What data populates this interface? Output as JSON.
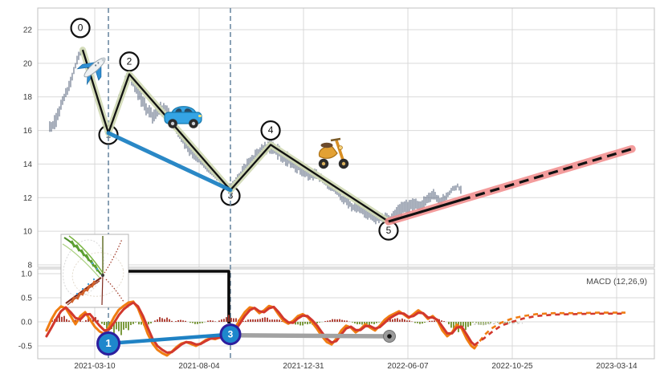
{
  "macd_label": "MACD (12,26,9)",
  "axes": {
    "main": {
      "yticks": [
        "22",
        "20",
        "18",
        "16",
        "14",
        "12",
        "10",
        "8"
      ],
      "ytick_values": [
        22,
        20,
        18,
        16,
        14,
        12,
        10,
        8
      ]
    },
    "macd": {
      "yticks": [
        "1.0",
        "0.5",
        "0.0",
        "-0.5"
      ],
      "ytick_values": [
        1.0,
        0.5,
        0.0,
        -0.5
      ]
    },
    "x": {
      "ticks": [
        "2021-03-10",
        "2021-08-04",
        "2021-12-31",
        "2022-06-07",
        "2022-10-25",
        "2023-03-14"
      ]
    }
  },
  "colors": {
    "price_bar": "#55637b",
    "wave_line": "#111111",
    "wave_glow": "#d0d9b4",
    "trend_blue": "#1f82c4",
    "forecast_line": "#111111",
    "forecast_glow": "#f28b8b",
    "macd": "#f07d12",
    "signal": "#d2382d",
    "hist_pos": "#a93226",
    "hist_neg": "#6d8f28",
    "gray_run": "#a2a2a2",
    "vline": "#6d8aa3",
    "marker_fill": "#1e87cc",
    "marker_edge": "#2d1e9e",
    "grid": "#d9d9d9",
    "spine": "#c0c0c0",
    "tick_text": "#3a3a3a"
  },
  "icons": [
    {
      "name": "airplane-icon"
    },
    {
      "name": "car-icon"
    },
    {
      "name": "scooter-icon"
    },
    {
      "name": "inset-pattern-image"
    }
  ],
  "chart_data": {
    "type": "line",
    "x_unit": "grid intervals from 2021-03-10 tick (1 interval = 1 x-gridline spacing, ~104 trading days)",
    "main_ylim": [
      7.9,
      23.3
    ],
    "macd_ylim": [
      -0.77,
      1.1
    ],
    "grid": true,
    "price_anchors": [
      [
        -0.431,
        16.1
      ],
      [
        -0.369,
        16.6
      ],
      [
        -0.308,
        17.8
      ],
      [
        -0.246,
        18.6
      ],
      [
        -0.2,
        19.6
      ],
      [
        -0.162,
        20.3
      ],
      [
        -0.115,
        20.9
      ],
      [
        -0.077,
        20.1
      ],
      [
        -0.031,
        19.2
      ],
      [
        0.015,
        18.0
      ],
      [
        0.062,
        17.0
      ],
      [
        0.1,
        16.3
      ],
      [
        0.131,
        15.9
      ],
      [
        0.169,
        16.6
      ],
      [
        0.215,
        17.6
      ],
      [
        0.262,
        18.5
      ],
      [
        0.308,
        19.1
      ],
      [
        0.338,
        19.35
      ],
      [
        0.385,
        18.6
      ],
      [
        0.431,
        18.0
      ],
      [
        0.492,
        17.3
      ],
      [
        0.554,
        16.9
      ],
      [
        0.615,
        17.2
      ],
      [
        0.677,
        17.3
      ],
      [
        0.738,
        16.6
      ],
      [
        0.8,
        15.9
      ],
      [
        0.862,
        15.3
      ],
      [
        0.923,
        14.7
      ],
      [
        0.985,
        14.3
      ],
      [
        1.046,
        14.0
      ],
      [
        1.108,
        13.6
      ],
      [
        1.169,
        13.2
      ],
      [
        1.231,
        12.8
      ],
      [
        1.3,
        12.5
      ],
      [
        1.362,
        13.0
      ],
      [
        1.423,
        13.6
      ],
      [
        1.485,
        14.1
      ],
      [
        1.546,
        14.5
      ],
      [
        1.608,
        14.9
      ],
      [
        1.685,
        15.1
      ],
      [
        1.746,
        14.8
      ],
      [
        1.808,
        14.4
      ],
      [
        1.869,
        14.2
      ],
      [
        1.931,
        13.9
      ],
      [
        1.992,
        13.6
      ],
      [
        2.054,
        13.3
      ],
      [
        2.115,
        13.4
      ],
      [
        2.177,
        13.1
      ],
      [
        2.238,
        12.7
      ],
      [
        2.3,
        12.4
      ],
      [
        2.362,
        12.0
      ],
      [
        2.423,
        11.7
      ],
      [
        2.485,
        11.4
      ],
      [
        2.546,
        11.3
      ],
      [
        2.608,
        11.1
      ],
      [
        2.669,
        10.9
      ],
      [
        2.731,
        10.8
      ],
      [
        2.815,
        10.6
      ],
      [
        2.877,
        11.0
      ],
      [
        2.938,
        11.3
      ],
      [
        3.0,
        11.5
      ],
      [
        3.062,
        11.7
      ],
      [
        3.123,
        11.4
      ],
      [
        3.185,
        12.0
      ],
      [
        3.246,
        12.2
      ],
      [
        3.308,
        11.8
      ],
      [
        3.369,
        12.1
      ],
      [
        3.431,
        12.5
      ],
      [
        3.477,
        12.7
      ],
      [
        3.515,
        12.4
      ]
    ],
    "price_noise_amp": 0.32,
    "elliott_waves": {
      "labels": [
        "0",
        "1",
        "2",
        "3",
        "4",
        "5"
      ],
      "pivots": [
        [
          -0.115,
          20.8
        ],
        [
          0.131,
          15.85
        ],
        [
          0.331,
          19.35
        ],
        [
          1.3,
          12.45
        ],
        [
          1.685,
          15.15
        ],
        [
          2.815,
          10.58
        ]
      ],
      "marker_centers": [
        [
          -0.138,
          22.1
        ],
        [
          0.131,
          15.74
        ],
        [
          0.331,
          20.1
        ],
        [
          1.3,
          12.11
        ],
        [
          1.685,
          16.0
        ],
        [
          2.815,
          10.05
        ]
      ]
    },
    "trendline_1_3": {
      "from": [
        0.131,
        15.85
      ],
      "to": [
        1.3,
        12.45
      ]
    },
    "forecast": {
      "start": [
        2.815,
        10.58
      ],
      "solid_to": [
        3.508,
        11.86
      ],
      "end": [
        5.146,
        14.9
      ]
    },
    "vlines_u": [
      0.131,
      1.3
    ],
    "macd_line": [
      [
        -0.462,
        -0.18
      ],
      [
        -0.415,
        0.05
      ],
      [
        -0.369,
        0.22
      ],
      [
        -0.323,
        0.32
      ],
      [
        -0.277,
        0.28
      ],
      [
        -0.231,
        0.12
      ],
      [
        -0.185,
        -0.05
      ],
      [
        -0.138,
        0.12
      ],
      [
        -0.092,
        0.2
      ],
      [
        -0.046,
        0.05
      ],
      [
        0,
        -0.1
      ],
      [
        0.046,
        -0.2
      ],
      [
        0.092,
        -0.25
      ],
      [
        0.138,
        -0.1
      ],
      [
        0.185,
        0.1
      ],
      [
        0.231,
        0.25
      ],
      [
        0.277,
        0.33
      ],
      [
        0.323,
        0.4
      ],
      [
        0.369,
        0.42
      ],
      [
        0.415,
        0.28
      ],
      [
        0.462,
        0.02
      ],
      [
        0.508,
        -0.25
      ],
      [
        0.554,
        -0.45
      ],
      [
        0.6,
        -0.58
      ],
      [
        0.646,
        -0.65
      ],
      [
        0.692,
        -0.7
      ],
      [
        0.738,
        -0.62
      ],
      [
        0.785,
        -0.52
      ],
      [
        0.831,
        -0.45
      ],
      [
        0.877,
        -0.42
      ],
      [
        0.923,
        -0.46
      ],
      [
        0.969,
        -0.5
      ],
      [
        1.015,
        -0.45
      ],
      [
        1.062,
        -0.38
      ],
      [
        1.108,
        -0.34
      ],
      [
        1.154,
        -0.36
      ],
      [
        1.2,
        -0.32
      ],
      [
        1.246,
        -0.3
      ],
      [
        1.3,
        -0.26
      ],
      [
        1.346,
        -0.12
      ],
      [
        1.392,
        0.05
      ],
      [
        1.438,
        0.2
      ],
      [
        1.485,
        0.3
      ],
      [
        1.531,
        0.28
      ],
      [
        1.577,
        0.18
      ],
      [
        1.623,
        0.24
      ],
      [
        1.669,
        0.33
      ],
      [
        1.715,
        0.3
      ],
      [
        1.762,
        0.15
      ],
      [
        1.808,
        0.02
      ],
      [
        1.854,
        -0.04
      ],
      [
        1.9,
        0.02
      ],
      [
        1.946,
        0.12
      ],
      [
        1.992,
        0.16
      ],
      [
        2.038,
        0.1
      ],
      [
        2.085,
        -0.02
      ],
      [
        2.131,
        -0.15
      ],
      [
        2.177,
        -0.3
      ],
      [
        2.223,
        -0.42
      ],
      [
        2.269,
        -0.47
      ],
      [
        2.315,
        -0.35
      ],
      [
        2.362,
        -0.18
      ],
      [
        2.408,
        -0.08
      ],
      [
        2.454,
        -0.12
      ],
      [
        2.5,
        -0.22
      ],
      [
        2.546,
        -0.15
      ],
      [
        2.592,
        -0.05
      ],
      [
        2.638,
        -0.12
      ],
      [
        2.685,
        -0.18
      ],
      [
        2.731,
        -0.08
      ],
      [
        2.777,
        0.04
      ],
      [
        2.823,
        0.12
      ],
      [
        2.869,
        0.17
      ],
      [
        2.915,
        0.22
      ],
      [
        2.962,
        0.15
      ],
      [
        3.008,
        0.08
      ],
      [
        3.054,
        0.16
      ],
      [
        3.1,
        0.24
      ],
      [
        3.146,
        0.17
      ],
      [
        3.192,
        0.06
      ],
      [
        3.238,
        0.12
      ],
      [
        3.285,
        0.02
      ],
      [
        3.331,
        -0.18
      ],
      [
        3.377,
        -0.3
      ],
      [
        3.423,
        -0.22
      ],
      [
        3.469,
        -0.06
      ],
      [
        3.515,
        -0.14
      ],
      [
        3.562,
        -0.35
      ],
      [
        3.608,
        -0.5
      ],
      [
        3.638,
        -0.55
      ]
    ],
    "macd_line_forecast": [
      [
        3.638,
        -0.55
      ],
      [
        3.731,
        -0.28
      ],
      [
        3.8,
        -0.14
      ],
      [
        3.892,
        -0.02
      ],
      [
        4.0,
        0.07
      ],
      [
        4.108,
        0.12
      ],
      [
        4.231,
        0.16
      ],
      [
        4.4,
        0.18
      ],
      [
        4.592,
        0.18
      ],
      [
        4.823,
        0.19
      ],
      [
        5.085,
        0.19
      ]
    ],
    "signal_line": [
      [
        -0.462,
        -0.3
      ],
      [
        -0.415,
        -0.12
      ],
      [
        -0.369,
        0.06
      ],
      [
        -0.323,
        0.22
      ],
      [
        -0.277,
        0.3
      ],
      [
        -0.231,
        0.2
      ],
      [
        -0.185,
        0.08
      ],
      [
        -0.138,
        0.05
      ],
      [
        -0.092,
        0.15
      ],
      [
        -0.046,
        0.16
      ],
      [
        0,
        0.04
      ],
      [
        0.046,
        -0.08
      ],
      [
        0.092,
        -0.18
      ],
      [
        0.138,
        -0.16
      ],
      [
        0.185,
        -0.02
      ],
      [
        0.231,
        0.14
      ],
      [
        0.277,
        0.26
      ],
      [
        0.323,
        0.34
      ],
      [
        0.369,
        0.4
      ],
      [
        0.415,
        0.32
      ],
      [
        0.462,
        0.12
      ],
      [
        0.508,
        -0.12
      ],
      [
        0.554,
        -0.35
      ],
      [
        0.6,
        -0.5
      ],
      [
        0.646,
        -0.58
      ],
      [
        0.692,
        -0.64
      ],
      [
        0.738,
        -0.63
      ],
      [
        0.785,
        -0.55
      ],
      [
        0.831,
        -0.47
      ],
      [
        0.877,
        -0.42
      ],
      [
        0.923,
        -0.43
      ],
      [
        0.969,
        -0.47
      ],
      [
        1.015,
        -0.46
      ],
      [
        1.062,
        -0.4
      ],
      [
        1.108,
        -0.35
      ],
      [
        1.154,
        -0.34
      ],
      [
        1.2,
        -0.33
      ],
      [
        1.246,
        -0.3
      ],
      [
        1.3,
        -0.28
      ],
      [
        1.346,
        -0.18
      ],
      [
        1.392,
        -0.03
      ],
      [
        1.438,
        0.12
      ],
      [
        1.485,
        0.24
      ],
      [
        1.531,
        0.29
      ],
      [
        1.577,
        0.22
      ],
      [
        1.623,
        0.2
      ],
      [
        1.669,
        0.28
      ],
      [
        1.715,
        0.31
      ],
      [
        1.762,
        0.2
      ],
      [
        1.808,
        0.07
      ],
      [
        1.854,
        -0.01
      ],
      [
        1.9,
        -0.02
      ],
      [
        1.946,
        0.07
      ],
      [
        1.992,
        0.13
      ],
      [
        2.038,
        0.12
      ],
      [
        2.085,
        0.03
      ],
      [
        2.131,
        -0.08
      ],
      [
        2.177,
        -0.22
      ],
      [
        2.223,
        -0.35
      ],
      [
        2.269,
        -0.43
      ],
      [
        2.315,
        -0.4
      ],
      [
        2.362,
        -0.26
      ],
      [
        2.408,
        -0.14
      ],
      [
        2.454,
        -0.1
      ],
      [
        2.5,
        -0.17
      ],
      [
        2.546,
        -0.17
      ],
      [
        2.592,
        -0.09
      ],
      [
        2.638,
        -0.09
      ],
      [
        2.685,
        -0.14
      ],
      [
        2.731,
        -0.11
      ],
      [
        2.777,
        -0.02
      ],
      [
        2.823,
        0.07
      ],
      [
        2.869,
        0.13
      ],
      [
        2.915,
        0.18
      ],
      [
        2.962,
        0.17
      ],
      [
        3.008,
        0.1
      ],
      [
        3.054,
        0.12
      ],
      [
        3.1,
        0.19
      ],
      [
        3.146,
        0.18
      ],
      [
        3.192,
        0.09
      ],
      [
        3.238,
        0.09
      ],
      [
        3.285,
        0.04
      ],
      [
        3.331,
        -0.1
      ],
      [
        3.377,
        -0.24
      ],
      [
        3.423,
        -0.24
      ],
      [
        3.469,
        -0.12
      ],
      [
        3.515,
        -0.1
      ],
      [
        3.562,
        -0.26
      ],
      [
        3.608,
        -0.42
      ],
      [
        3.638,
        -0.48
      ]
    ],
    "signal_line_forecast": [
      [
        3.638,
        -0.48
      ],
      [
        3.731,
        -0.34
      ],
      [
        3.8,
        -0.22
      ],
      [
        3.892,
        -0.08
      ],
      [
        4.0,
        0.0
      ],
      [
        4.108,
        0.07
      ],
      [
        4.231,
        0.12
      ],
      [
        4.4,
        0.15
      ],
      [
        4.592,
        0.16
      ],
      [
        4.823,
        0.17
      ],
      [
        5.085,
        0.17
      ]
    ],
    "histogram_clusters": [
      [
        -0.431,
        -0.231,
        0.18
      ],
      [
        -0.231,
        -0.108,
        0.07
      ],
      [
        -0.108,
        0.046,
        0.15
      ],
      [
        0.046,
        0.4,
        -0.32
      ],
      [
        0.4,
        0.554,
        -0.12
      ],
      [
        0.554,
        0.754,
        0.12
      ],
      [
        0.754,
        0.892,
        0.05
      ],
      [
        0.892,
        1.062,
        -0.06
      ],
      [
        1.062,
        1.169,
        0.04
      ],
      [
        1.169,
        1.4,
        0.15
      ],
      [
        1.4,
        1.831,
        0.1
      ],
      [
        1.831,
        2.185,
        -0.08
      ],
      [
        2.185,
        2.446,
        0.08
      ],
      [
        2.446,
        2.738,
        -0.09
      ],
      [
        2.738,
        3.046,
        0.09
      ],
      [
        3.046,
        3.185,
        -0.05
      ],
      [
        3.185,
        3.369,
        0.06
      ],
      [
        3.369,
        3.631,
        -0.24
      ],
      [
        3.631,
        3.815,
        -0.09
      ],
      [
        3.815,
        4.077,
        -0.04
      ]
    ],
    "macd_markers": [
      {
        "label": "1",
        "u": 0.131,
        "v": -0.45,
        "r": 13.5
      },
      {
        "label": "3",
        "u": 1.3,
        "v": -0.26,
        "r": 12
      }
    ],
    "macd_trendline_1_3": {
      "from": [
        0.131,
        -0.45
      ],
      "to": [
        1.3,
        -0.26
      ]
    },
    "gray_run": {
      "from": [
        1.323,
        -0.28
      ],
      "to": [
        2.8,
        -0.3
      ]
    },
    "hist_forecast_line": {
      "from": [
        3.63,
        -0.05
      ],
      "to": [
        4.1,
        -0.03
      ]
    }
  }
}
